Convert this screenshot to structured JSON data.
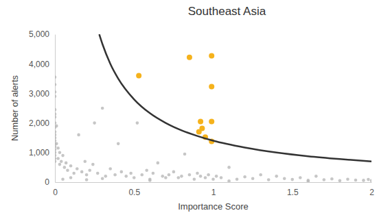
{
  "chart_data": {
    "type": "scatter",
    "title": "Southeast Asia",
    "x_label": "Importance Score",
    "y_label": "Number of alerts",
    "xlim": [
      0,
      2
    ],
    "ylim": [
      0,
      5000
    ],
    "xticks": [
      0,
      0.5,
      1,
      1.5,
      2
    ],
    "yticks": [
      0,
      {
        "value": 1000,
        "label": "1,000"
      },
      {
        "value": 2000,
        "label": "2,000"
      },
      {
        "value": 3000,
        "label": "3,000"
      },
      {
        "value": 4000,
        "label": "4,000"
      },
      {
        "value": 5000,
        "label": "5,000"
      }
    ],
    "grid": false,
    "series": [
      {
        "type": "scatter",
        "marker": "circle",
        "color": "#b8b8b8",
        "x": [
          0,
          0,
          0,
          0,
          0,
          0,
          0,
          0,
          0,
          0,
          0,
          0,
          0,
          0,
          0,
          0,
          0,
          0,
          0,
          0,
          0.01,
          0.01,
          0.02,
          0.02,
          0.03,
          0.03,
          0.04,
          0.05,
          0.06,
          0.07,
          0.08,
          0.1,
          0.12,
          0.14,
          0.15,
          0.17,
          0.19,
          0.2,
          0.22,
          0.24,
          0.25,
          0.27,
          0.3,
          0.32,
          0.35,
          0.38,
          0.4,
          0.42,
          0.45,
          0.48,
          0.5,
          0.52,
          0.55,
          0.58,
          0.6,
          0.62,
          0.65,
          0.68,
          0.7,
          0.72,
          0.75,
          0.78,
          0.8,
          0.82,
          0.85,
          0.88,
          0.9,
          0.92,
          0.95,
          0.97,
          1.0,
          1.02,
          1.05,
          1.1,
          1.15,
          1.2,
          1.25,
          1.3,
          1.35,
          1.4,
          1.45,
          1.5,
          1.55,
          1.6,
          1.65,
          1.7,
          1.75,
          1.8,
          1.85,
          1.9,
          1.95,
          1.98,
          2.0,
          0.05,
          0.1,
          0.2,
          0.3,
          0.6,
          1.1,
          1.6
        ],
        "values": [
          3550,
          3300,
          3050,
          2900,
          2450,
          2300,
          2200,
          2000,
          1850,
          1700,
          1600,
          1500,
          1400,
          1300,
          1200,
          1100,
          1000,
          900,
          800,
          700,
          1900,
          1300,
          1150,
          800,
          1000,
          600,
          700,
          900,
          500,
          650,
          400,
          550,
          300,
          450,
          1600,
          350,
          700,
          250,
          400,
          600,
          2000,
          300,
          2500,
          200,
          450,
          250,
          1300,
          350,
          200,
          300,
          150,
          2000,
          250,
          400,
          100,
          300,
          650,
          200,
          150,
          250,
          350,
          150,
          200,
          950,
          250,
          100,
          300,
          200,
          150,
          250,
          100,
          200,
          150,
          500,
          100,
          180,
          120,
          250,
          80,
          200,
          120,
          90,
          150,
          60,
          200,
          80,
          110,
          50,
          100,
          70,
          60,
          90,
          50,
          100,
          150,
          80,
          120,
          60,
          40,
          30
        ]
      },
      {
        "type": "scatter",
        "marker": "circle",
        "color": "#f5b21c",
        "x": [
          0.53,
          0.85,
          0.99,
          0.99,
          0.92,
          0.99,
          0.93,
          0.91,
          0.95,
          0.99
        ],
        "values": [
          3600,
          4220,
          4270,
          3230,
          2050,
          2050,
          1820,
          1700,
          1520,
          1380
        ]
      },
      {
        "type": "line",
        "line_style": "solid",
        "color": "#333333",
        "x": [
          0.28,
          0.3,
          0.35,
          0.4,
          0.5,
          0.6,
          0.7,
          0.8,
          0.9,
          1,
          1.2,
          1.4,
          1.6,
          1.8,
          2
        ],
        "values": [
          5000,
          4670,
          4000,
          3500,
          2800,
          2330,
          2000,
          1750,
          1560,
          1400,
          1170,
          1000,
          875,
          780,
          700
        ]
      }
    ]
  }
}
